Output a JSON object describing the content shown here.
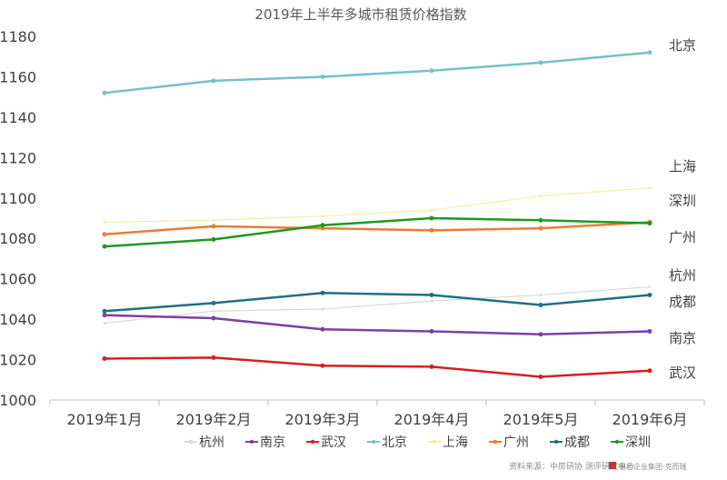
{
  "chart_data": {
    "type": "line",
    "title": "2019年上半年多城市租赁价格指数",
    "categories": [
      "2019年1月",
      "2019年2月",
      "2019年3月",
      "2019年4月",
      "2019年5月",
      "2019年6月"
    ],
    "ylim": [
      1000,
      1180
    ],
    "yticks": [
      1000,
      1020,
      1040,
      1060,
      1080,
      1100,
      1120,
      1140,
      1160,
      1180
    ],
    "grid": false,
    "legend_position": "bottom",
    "series": [
      {
        "name": "杭州",
        "color": "#d9d9d9",
        "values": [
          1038,
          1044,
          1045,
          1049,
          1052,
          1056
        ]
      },
      {
        "name": "南京",
        "color": "#7e3f9e",
        "values": [
          1042,
          1040.5,
          1035,
          1034,
          1032.5,
          1034
        ]
      },
      {
        "name": "武汉",
        "color": "#d61f1f",
        "values": [
          1020.5,
          1021,
          1017,
          1016.5,
          1011.5,
          1014.5
        ]
      },
      {
        "name": "北京",
        "color": "#74c2c4",
        "values": [
          1152,
          1158,
          1160,
          1163,
          1167,
          1172
        ]
      },
      {
        "name": "上海",
        "color": "#f5ecab",
        "values": [
          1088,
          1089,
          1091,
          1094,
          1101,
          1105
        ]
      },
      {
        "name": "广州",
        "color": "#e87d37",
        "values": [
          1082,
          1086,
          1085,
          1084,
          1085,
          1088
        ]
      },
      {
        "name": "成都",
        "color": "#1f6f86",
        "values": [
          1044,
          1048,
          1053,
          1052,
          1047,
          1052
        ]
      },
      {
        "name": "深圳",
        "color": "#1c9a1c",
        "values": [
          1076,
          1079.5,
          1086.5,
          1090,
          1089,
          1087.5
        ]
      }
    ],
    "end_labels": [
      {
        "text": "北京",
        "at": 1176
      },
      {
        "text": "上海",
        "at": 1116
      },
      {
        "text": "深圳",
        "at": 1099
      },
      {
        "text": "广州",
        "at": 1081
      },
      {
        "text": "杭州",
        "at": 1062
      },
      {
        "text": "成都",
        "at": 1049
      },
      {
        "text": "南京",
        "at": 1031
      },
      {
        "text": "武汉",
        "at": 1014
      }
    ]
  },
  "footer": {
    "source": "资料来源：中房研协 测评研究中心",
    "logo_text": "易居企业集团·克而瑞"
  }
}
